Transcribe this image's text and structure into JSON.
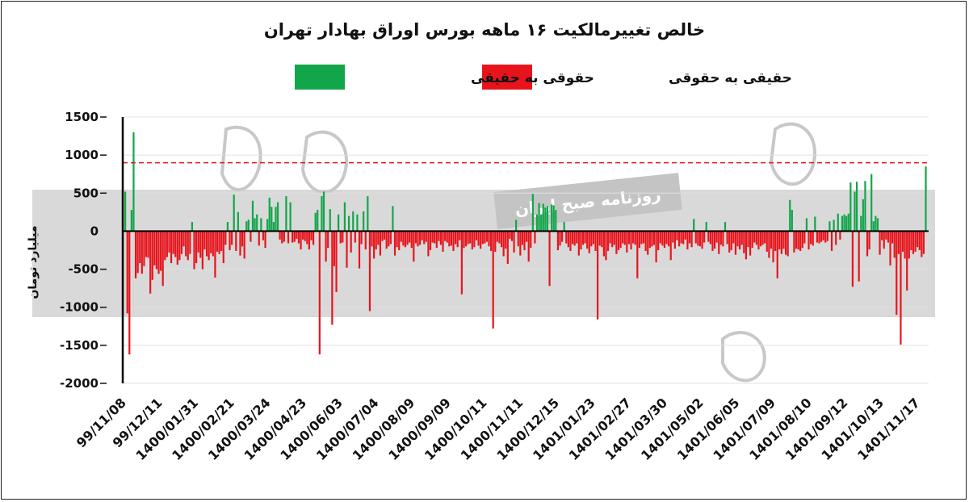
{
  "chart_data": {
    "type": "bar",
    "title": "خالص تغییرمالکیت ۱۶ ماهه بورس اوراق بهادار تهران",
    "ylabel": "میلیارد تومان",
    "ylim": [
      -2000,
      1500
    ],
    "yticks": [
      1500,
      1000,
      500,
      0,
      -500,
      -1000,
      -1500,
      -2000
    ],
    "ytick_labels": [
      "1500",
      "1000",
      "500",
      "0",
      "-500",
      "-1000",
      "-1500",
      "-2000"
    ],
    "reference_line": 900,
    "grid": true,
    "legend_position": "top-center",
    "series": [
      {
        "name": "حقیقی به حقوقی",
        "color": "#e8141c"
      },
      {
        "name": "حقوقی به حقیقی",
        "color": "#12a64a"
      }
    ],
    "x_ticks": [
      "99/11/08",
      "99/12/11",
      "1400/01/31",
      "1400/02/21",
      "1400/03/24",
      "1400/04/23",
      "1400/06/03",
      "1400/07/04",
      "1400/08/09",
      "1400/09/09",
      "1400/10/11",
      "1400/11/11",
      "1400/12/15",
      "1401/01/23",
      "1401/02/27",
      "1401/03/30",
      "1401/05/02",
      "1401/06/05",
      "1401/07/09",
      "1401/08/10",
      "1401/09/12",
      "1401/10/13",
      "1401/11/17"
    ],
    "values": [
      520,
      -1080,
      -1620,
      280,
      1300,
      -620,
      -550,
      -420,
      -560,
      -460,
      -340,
      -350,
      -820,
      -640,
      -450,
      -500,
      -560,
      -520,
      -720,
      -380,
      -340,
      -280,
      -420,
      -300,
      -340,
      -440,
      -380,
      -300,
      -200,
      -330,
      -380,
      -300,
      120,
      -500,
      -420,
      -280,
      -350,
      -500,
      -240,
      -330,
      -380,
      -290,
      -330,
      -610,
      -270,
      -300,
      -260,
      -420,
      -180,
      120,
      -250,
      -180,
      480,
      -260,
      250,
      -320,
      -200,
      -360,
      130,
      150,
      -140,
      400,
      170,
      220,
      -190,
      170,
      -120,
      -220,
      160,
      440,
      320,
      120,
      320,
      380,
      -110,
      -160,
      -140,
      460,
      -160,
      380,
      -150,
      -140,
      -100,
      -160,
      -240,
      -110,
      -130,
      -170,
      -240,
      -120,
      -180,
      240,
      280,
      -1620,
      460,
      520,
      -400,
      -220,
      290,
      -1230,
      -460,
      -800,
      220,
      -160,
      -150,
      380,
      -480,
      200,
      -280,
      260,
      -150,
      220,
      -490,
      -170,
      260,
      -240,
      460,
      -1050,
      -200,
      -360,
      -240,
      -180,
      -320,
      -130,
      -110,
      -230,
      -200,
      -170,
      330,
      -320,
      -210,
      -250,
      -140,
      -190,
      -210,
      -180,
      -150,
      -220,
      -400,
      -160,
      -200,
      -180,
      -120,
      -170,
      -140,
      -330,
      -250,
      -150,
      -160,
      -220,
      -130,
      -180,
      -270,
      -130,
      -150,
      -200,
      -190,
      -260,
      -170,
      -210,
      -120,
      -830,
      -220,
      -200,
      -170,
      -160,
      -240,
      -210,
      -120,
      -190,
      -230,
      -170,
      -160,
      -140,
      -200,
      -260,
      -1280,
      -270,
      -140,
      -160,
      -210,
      -330,
      -230,
      -430,
      -100,
      -130,
      -280,
      150,
      -200,
      -320,
      -180,
      -250,
      -140,
      -400,
      -220,
      490,
      -160,
      220,
      370,
      220,
      360,
      310,
      330,
      -720,
      350,
      340,
      280,
      -250,
      -190,
      -140,
      120,
      -160,
      -210,
      -260,
      -170,
      -190,
      -160,
      -320,
      -240,
      -180,
      -160,
      -230,
      -290,
      -200,
      -170,
      -260,
      -1160,
      -190,
      -210,
      -330,
      -380,
      -260,
      -160,
      -210,
      -180,
      -300,
      -250,
      -220,
      -160,
      -180,
      -280,
      -170,
      -240,
      -160,
      -180,
      -620,
      -220,
      -170,
      -160,
      -260,
      -310,
      -220,
      -200,
      -180,
      -410,
      -250,
      -160,
      -190,
      -220,
      -170,
      -200,
      -380,
      -150,
      -230,
      -120,
      -200,
      -160,
      -170,
      -110,
      -240,
      -160,
      -210,
      160,
      -160,
      -190,
      -200,
      -230,
      -150,
      120,
      -140,
      -170,
      -260,
      -230,
      -150,
      -300,
      -180,
      -200,
      120,
      -170,
      -280,
      -250,
      -160,
      -310,
      -200,
      -240,
      -180,
      -290,
      -370,
      -210,
      -320,
      -220,
      -150,
      -180,
      -240,
      -200,
      -180,
      -160,
      -270,
      -350,
      -230,
      -410,
      -260,
      -620,
      -240,
      -300,
      -230,
      -310,
      -330,
      410,
      280,
      -280,
      -230,
      -240,
      -260,
      -220,
      -160,
      170,
      -240,
      -170,
      -190,
      190,
      -150,
      -160,
      -140,
      -120,
      -150,
      -130,
      130,
      -260,
      150,
      -180,
      230,
      -110,
      200,
      220,
      200,
      230,
      640,
      -730,
      520,
      650,
      -660,
      200,
      420,
      660,
      -330,
      -240,
      750,
      130,
      200,
      170,
      -310,
      -120,
      -230,
      -110,
      -150,
      -450,
      -160,
      -350,
      -1100,
      -300,
      -1490,
      -270,
      -360,
      -780,
      -360,
      -250,
      -300,
      -270,
      -210,
      -250,
      -340,
      -300,
      850
    ]
  },
  "watermark": {
    "label": "روزنامه صبح ایران"
  }
}
